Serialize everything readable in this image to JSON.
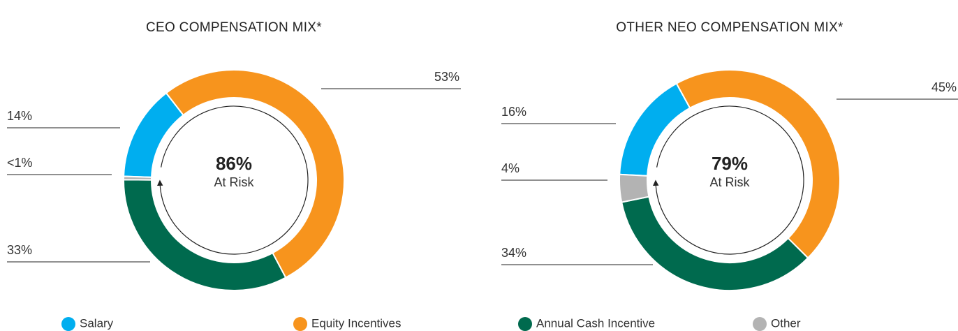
{
  "legend": {
    "labels": [
      "Salary",
      "Equity Incentives",
      "Annual Cash Incentive",
      "Other"
    ],
    "colors": [
      "#00aeef",
      "#f7941d",
      "#006a4e",
      "#b3b3b3"
    ]
  },
  "chart_data": [
    {
      "type": "pie",
      "title": "CEO COMPENSATION MIX*",
      "values": [
        14,
        53,
        33,
        0.5
      ],
      "value_labels": [
        "14%",
        "53%",
        "33%",
        "<1%"
      ],
      "center_text": "86%",
      "center_subtext": "At Risk"
    },
    {
      "type": "pie",
      "title": "OTHER NEO COMPENSATION MIX*",
      "values": [
        16,
        45,
        34,
        4
      ],
      "value_labels": [
        "16%",
        "45%",
        "34%",
        "4%"
      ],
      "center_text": "79%",
      "center_subtext": "At Risk"
    }
  ]
}
